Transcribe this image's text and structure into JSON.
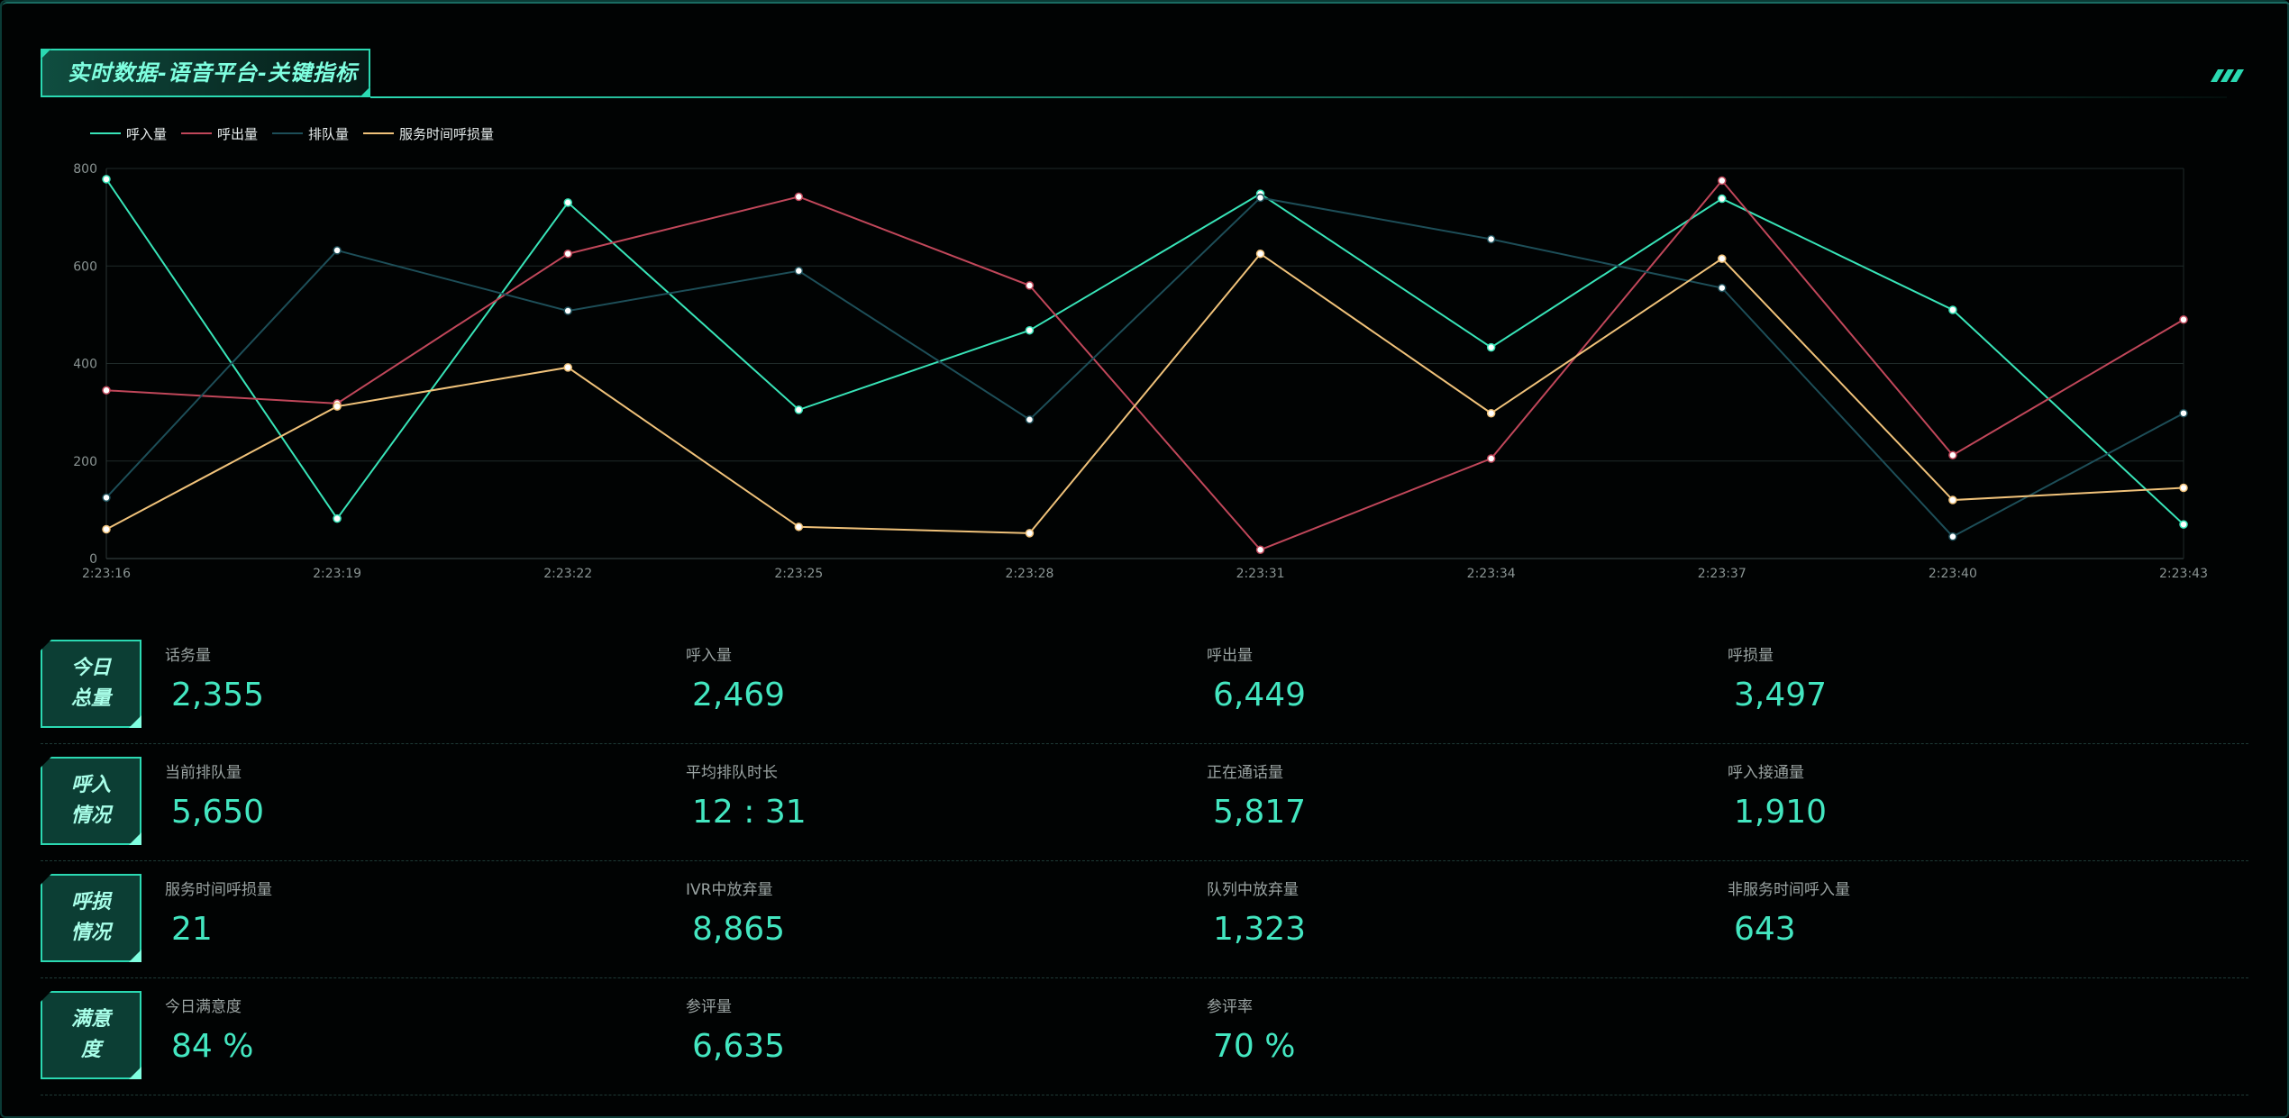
{
  "header": {
    "title": "实时数据-语音平台-关键指标"
  },
  "chart_data": {
    "type": "line",
    "title": "",
    "xlabel": "",
    "ylabel": "",
    "ylim": [
      0,
      800
    ],
    "yticks": [
      0,
      200,
      400,
      600,
      800
    ],
    "grid": true,
    "legend_position": "top-left",
    "x": [
      "2:23:16",
      "2:23:19",
      "2:23:22",
      "2:23:25",
      "2:23:28",
      "2:23:31",
      "2:23:34",
      "2:23:37",
      "2:23:40",
      "2:23:43"
    ],
    "series": [
      {
        "name": "呼入量",
        "color": "#38e4b8",
        "values": [
          778,
          82,
          730,
          305,
          468,
          748,
          433,
          738,
          510,
          70
        ]
      },
      {
        "name": "呼出量",
        "color": "#c0475a",
        "values": [
          345,
          318,
          625,
          742,
          560,
          18,
          205,
          775,
          212,
          490
        ]
      },
      {
        "name": "排队量",
        "color": "#1d4e58",
        "values": [
          125,
          632,
          508,
          590,
          285,
          740,
          655,
          555,
          45,
          298
        ]
      },
      {
        "name": "服务时间呼损量",
        "color": "#f0c27a",
        "values": [
          60,
          312,
          392,
          65,
          52,
          625,
          298,
          615,
          120,
          145
        ]
      }
    ]
  },
  "kpis": [
    {
      "badge": [
        "今日",
        "总量"
      ],
      "items": [
        {
          "label": "话务量",
          "value": "2,355"
        },
        {
          "label": "呼入量",
          "value": "2,469"
        },
        {
          "label": "呼出量",
          "value": "6,449"
        },
        {
          "label": "呼损量",
          "value": "3,497"
        }
      ]
    },
    {
      "badge": [
        "呼入",
        "情况"
      ],
      "items": [
        {
          "label": "当前排队量",
          "value": "5,650"
        },
        {
          "label": "平均排队时长",
          "value": "12 : 31"
        },
        {
          "label": "正在通话量",
          "value": "5,817"
        },
        {
          "label": "呼入接通量",
          "value": "1,910"
        }
      ]
    },
    {
      "badge": [
        "呼损",
        "情况"
      ],
      "items": [
        {
          "label": "服务时间呼损量",
          "value": "21"
        },
        {
          "label": "IVR中放弃量",
          "value": "8,865"
        },
        {
          "label": "队列中放弃量",
          "value": "1,323"
        },
        {
          "label": "非服务时间呼入量",
          "value": "643"
        }
      ]
    },
    {
      "badge": [
        "满意",
        "度"
      ],
      "items": [
        {
          "label": "今日满意度",
          "value": "84 %"
        },
        {
          "label": "参评量",
          "value": "6,635"
        },
        {
          "label": "参评率",
          "value": "70 %"
        }
      ]
    }
  ]
}
